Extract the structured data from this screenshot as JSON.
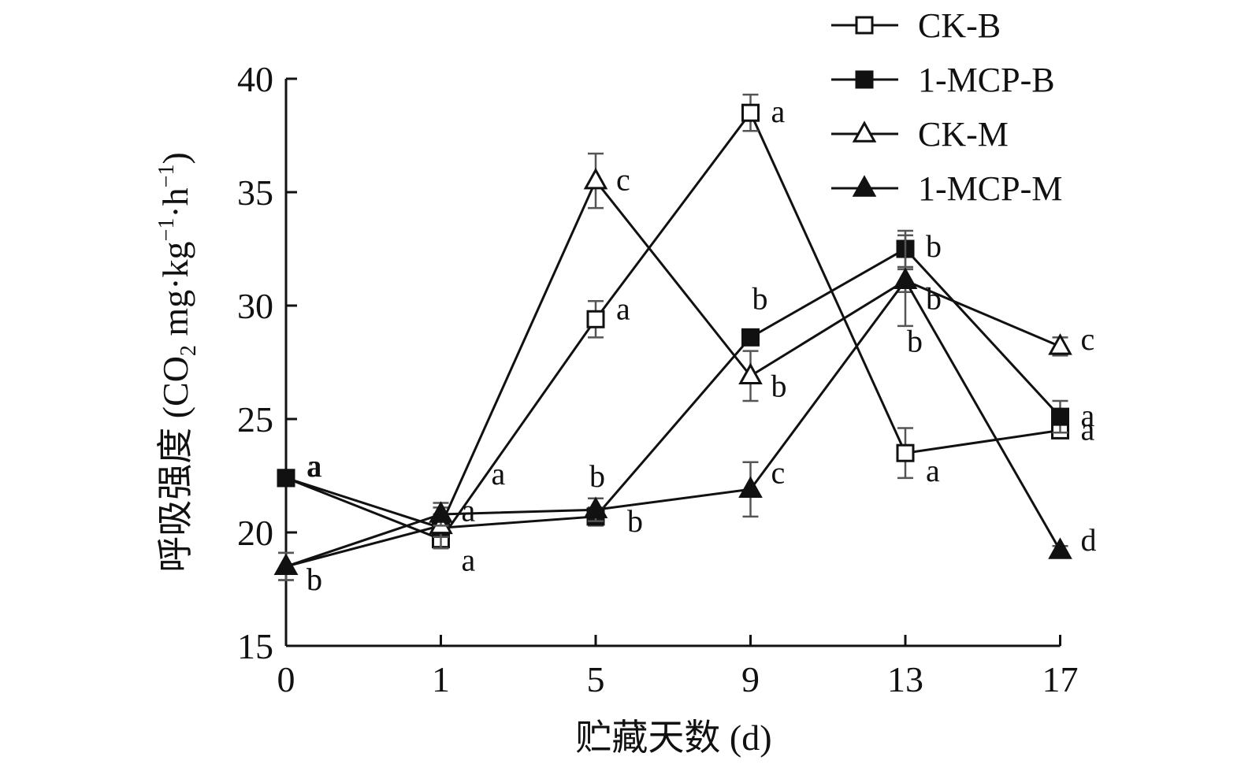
{
  "chart_data": {
    "type": "line",
    "categories": [
      "0",
      "1",
      "5",
      "9",
      "13",
      "17"
    ],
    "xlabel": "贮藏天数 (d)",
    "ylabel": "呼吸强度 (CO2 mg·kg-1·h-1)",
    "ylabel_parts": {
      "prefix": "呼吸强度 (CO",
      "sub": "2",
      "mid": " mg·kg",
      "sup1": "−1",
      "mid2": "·h",
      "sup2": "−1",
      "suffix": ")"
    },
    "ylim": [
      15,
      40
    ],
    "yticks": [
      15,
      20,
      25,
      30,
      35,
      40
    ],
    "grid": false,
    "legend_position": "top-right",
    "series": [
      {
        "name": "CK-B",
        "marker": "square-open",
        "values": [
          22.4,
          19.7,
          29.4,
          38.5,
          23.5,
          24.5
        ],
        "errors": [
          0.3,
          0.4,
          0.8,
          0.8,
          1.1,
          0.3
        ],
        "labels": [
          "a",
          "a",
          "a",
          "a",
          "a",
          "a"
        ]
      },
      {
        "name": "1-MCP-B",
        "marker": "square-filled",
        "values": [
          22.4,
          20.2,
          20.7,
          28.6,
          32.5,
          25.1
        ],
        "errors": [
          0.3,
          0.9,
          0.4,
          0.3,
          0.8,
          0.7
        ],
        "labels": [
          "a",
          "a",
          "b",
          "b",
          "b",
          "a"
        ]
      },
      {
        "name": "CK-M",
        "marker": "triangle-open",
        "values": [
          18.5,
          20.3,
          35.5,
          26.9,
          31.1,
          28.2
        ],
        "errors": [
          0.6,
          0.5,
          1.2,
          1.1,
          0.5,
          0.4
        ],
        "labels": [
          "b",
          "a",
          "c",
          "b",
          "b",
          "c"
        ]
      },
      {
        "name": "1-MCP-M",
        "marker": "triangle-filled",
        "values": [
          18.5,
          20.8,
          21.0,
          21.9,
          31.1,
          19.2
        ],
        "errors": [
          0.6,
          0.5,
          0.5,
          1.2,
          2.0,
          0.2
        ],
        "labels": [
          "b",
          "a",
          "b",
          "c",
          "b",
          "d"
        ]
      }
    ]
  }
}
